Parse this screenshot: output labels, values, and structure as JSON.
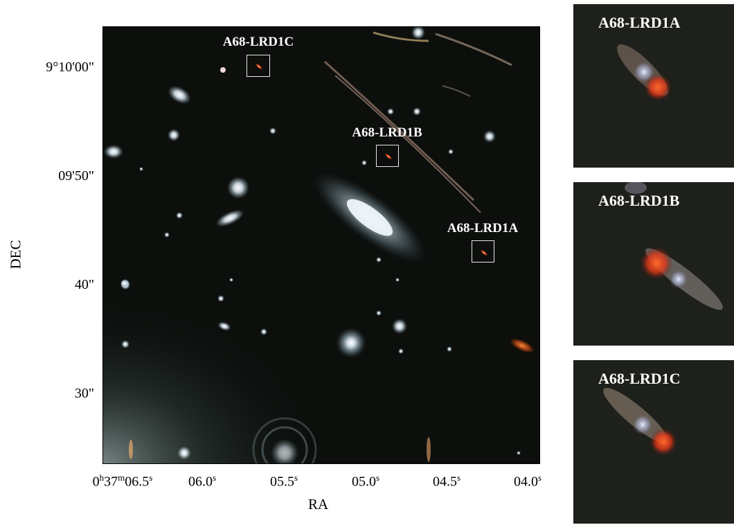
{
  "figure": {
    "axes": {
      "xlabel": "RA",
      "ylabel": "DEC",
      "xticks": [
        "0h37m06.5s",
        "06.0s",
        "05.5s",
        "05.0s",
        "04.5s",
        "04.0s"
      ],
      "yticks": [
        "9°10'00\"",
        "09'50\"",
        "40\"",
        "30\""
      ]
    },
    "targets": [
      {
        "name": "A68-LRD1C"
      },
      {
        "name": "A68-LRD1B"
      },
      {
        "name": "A68-LRD1A"
      }
    ],
    "cutouts": [
      {
        "label": "A68-LRD1A"
      },
      {
        "label": "A68-LRD1B"
      },
      {
        "label": "A68-LRD1C"
      }
    ],
    "colors": {
      "background": "#0c0f0c",
      "box": "#e8e8e8",
      "lrd_core": "#ff4a1a",
      "galaxy": "#cfe0e8"
    }
  }
}
